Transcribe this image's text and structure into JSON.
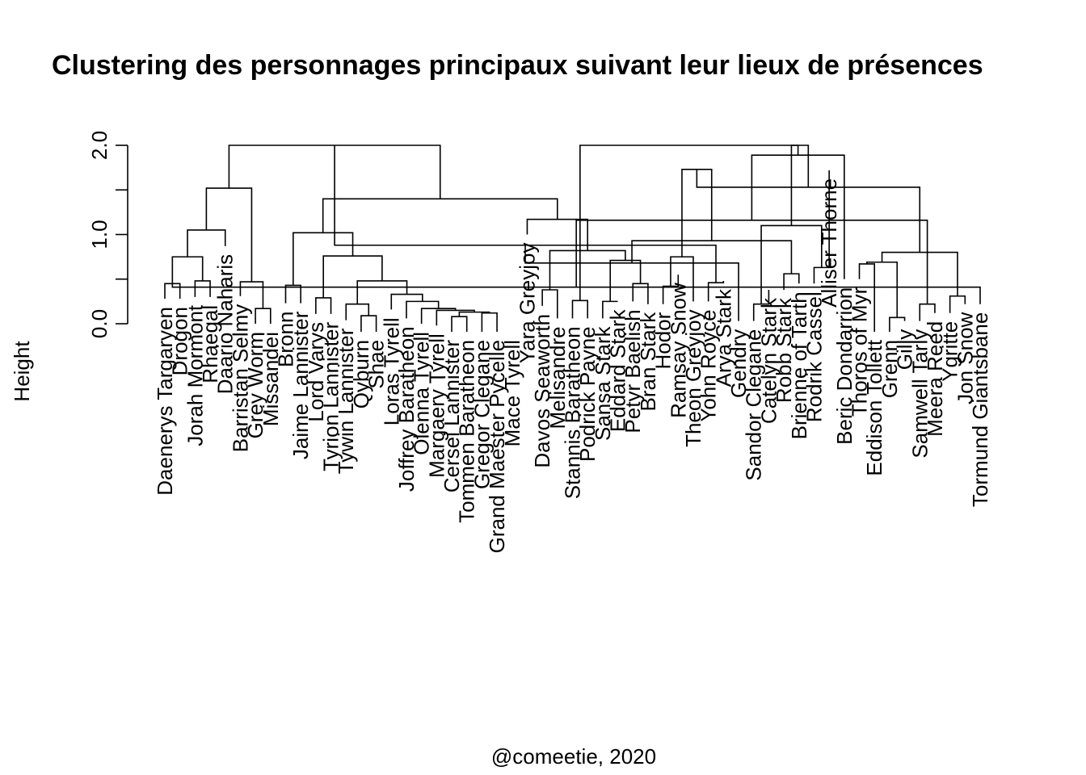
{
  "chart_data": {
    "type": "dendrogram",
    "title": "Clustering des personnages principaux suivant leur lieux de présences",
    "ylabel": "Height",
    "xlabel": "@comeetie, 2020",
    "ylim": [
      0,
      2.0
    ],
    "yticks": [
      0,
      0.5,
      1.0,
      1.5,
      2.0
    ],
    "ytick_labels": [
      "0.0",
      "",
      "1.0",
      "",
      "2.0"
    ],
    "leaves": [
      {
        "label": "Daenerys Targaryen",
        "h": 0.28
      },
      {
        "label": "Drogon",
        "h": 0.28
      },
      {
        "label": "Jorah Mormont",
        "h": 0.3
      },
      {
        "label": "Rhaegal",
        "h": 0.3
      },
      {
        "label": "Daario Naharis",
        "h": 0.87
      },
      {
        "label": "Barristan Selmy",
        "h": 0.31
      },
      {
        "label": "Grey Worm",
        "h": 0.0
      },
      {
        "label": "Missandei",
        "h": 0.0
      },
      {
        "label": "Bronn",
        "h": 0.23
      },
      {
        "label": "Jaime Lannister",
        "h": 0.23
      },
      {
        "label": "Lord Varys",
        "h": 0.11
      },
      {
        "label": "Tyrion Lannister",
        "h": 0.11
      },
      {
        "label": "Tywin Lannister",
        "h": 0.04
      },
      {
        "label": "Qyburn",
        "h": -0.09
      },
      {
        "label": "Shae",
        "h": -0.09
      },
      {
        "label": "Loras Tyrell",
        "h": 0.16
      },
      {
        "label": "Joffrey Baratheon",
        "h": 0.06
      },
      {
        "label": "Olenna Tyrell",
        "h": 0.0
      },
      {
        "label": "Margaery Tyrell",
        "h": -0.02
      },
      {
        "label": "Cersei Lannister",
        "h": -0.09
      },
      {
        "label": "Tommen Baratheon",
        "h": -0.09
      },
      {
        "label": "Gregor Clegane",
        "h": -0.09
      },
      {
        "label": "Grand Maester Pycelle",
        "h": -0.09
      },
      {
        "label": "Mace Tyrell",
        "h": -0.09
      },
      {
        "label": "Yara Greyjoy",
        "h": 1.0
      },
      {
        "label": "Davos Seaworth",
        "h": 0.2
      },
      {
        "label": "Melisandre",
        "h": 0.06
      },
      {
        "label": "Stannis Baratheon",
        "h": 0.06
      },
      {
        "label": "Podrick Payne",
        "h": 0.06
      },
      {
        "label": "Sansa Stark",
        "h": 0.06
      },
      {
        "label": "Eddard Stark",
        "h": 0.25
      },
      {
        "label": "Petyr Baelish",
        "h": 0.25
      },
      {
        "label": "Bran Stark",
        "h": 0.22
      },
      {
        "label": "Hodor",
        "h": 0.22
      },
      {
        "label": "Ramsay Snow",
        "h": 0.55
      },
      {
        "label": "Theon Greyjoy",
        "h": 0.25
      },
      {
        "label": "Yohn Royce",
        "h": 0.25
      },
      {
        "label": "Arya Stark",
        "h": 0.48
      },
      {
        "label": "Gendry",
        "h": 0.03
      },
      {
        "label": "Sandor Clegane",
        "h": 0.03
      },
      {
        "label": "Catelyn Stark",
        "h": 0.38
      },
      {
        "label": "Robb Stark",
        "h": 0.38
      },
      {
        "label": "Brienne of Tarth",
        "h": 0.45
      },
      {
        "label": "Rodrik Cassel",
        "h": 0.45
      },
      {
        "label": "Alliser Thorne",
        "h": 1.72
      },
      {
        "label": "Beric Dondarrion",
        "h": 0.5
      },
      {
        "label": "Thoros of Myr",
        "h": 0.5
      },
      {
        "label": "Eddison Tollett",
        "h": -0.09
      },
      {
        "label": "Grenn",
        "h": -0.09
      },
      {
        "label": "Gilly",
        "h": 0.03
      },
      {
        "label": "Samwell Tarly",
        "h": 0.03
      },
      {
        "label": "Meera Reed",
        "h": 0.12
      },
      {
        "label": "Ygritte",
        "h": 0.12
      },
      {
        "label": "Jon Snow",
        "h": 0.22
      },
      {
        "label": "Tormund Giantsbane",
        "h": 0.22
      }
    ],
    "merges": [
      [
        0,
        1,
        0.45
      ],
      [
        2,
        3,
        0.48
      ],
      [
        55,
        56,
        0.75
      ],
      [
        4,
        57,
        1.05
      ],
      [
        6,
        7,
        0.17
      ],
      [
        5,
        59,
        0.47
      ],
      [
        60,
        58,
        1.52
      ],
      [
        8,
        9,
        0.43
      ],
      [
        10,
        11,
        0.29
      ],
      [
        13,
        14,
        0.09
      ],
      [
        12,
        64,
        0.22
      ],
      [
        19,
        20,
        0.08
      ],
      [
        21,
        22,
        0.12
      ],
      [
        66,
        67,
        0.13
      ],
      [
        18,
        68,
        0.15
      ],
      [
        17,
        69,
        0.17
      ],
      [
        16,
        70,
        0.25
      ],
      [
        15,
        71,
        0.33
      ],
      [
        65,
        72,
        0.48
      ],
      [
        63,
        73,
        0.76
      ],
      [
        62,
        74,
        1.02
      ],
      [
        27,
        28,
        0.26
      ],
      [
        25,
        26,
        0.38
      ],
      [
        29,
        30,
        0.25
      ],
      [
        31,
        32,
        0.45
      ],
      [
        78,
        79,
        0.71
      ],
      [
        77,
        80,
        0.82
      ],
      [
        24,
        81,
        1.17
      ],
      [
        75,
        82,
        1.4
      ],
      [
        61,
        83,
        2.0
      ],
      [
        33,
        34,
        0.42
      ],
      [
        36,
        37,
        0.46
      ],
      [
        35,
        85,
        0.75
      ],
      [
        84,
        86,
        0.88
      ],
      [
        39,
        40,
        0.22
      ],
      [
        38,
        88,
        0.68
      ],
      [
        41,
        42,
        0.56
      ],
      [
        43,
        44,
        0.63
      ],
      [
        90,
        91,
        0.93
      ],
      [
        89,
        92,
        1.1
      ],
      [
        87,
        93,
        1.73
      ],
      [
        46,
        47,
        0.67
      ],
      [
        48,
        49,
        0.07
      ],
      [
        50,
        51,
        0.22
      ],
      [
        96,
        97,
        0.69
      ],
      [
        52,
        53,
        0.31
      ],
      [
        54,
        55,
        0.41
      ],
      [
        99,
        100,
        0.8
      ],
      [
        98,
        101,
        1.16
      ],
      [
        95,
        102,
        1.53
      ],
      [
        45,
        103,
        1.89
      ],
      [
        94,
        104,
        2.0
      ],
      [
        76,
        105,
        2.0
      ]
    ]
  }
}
